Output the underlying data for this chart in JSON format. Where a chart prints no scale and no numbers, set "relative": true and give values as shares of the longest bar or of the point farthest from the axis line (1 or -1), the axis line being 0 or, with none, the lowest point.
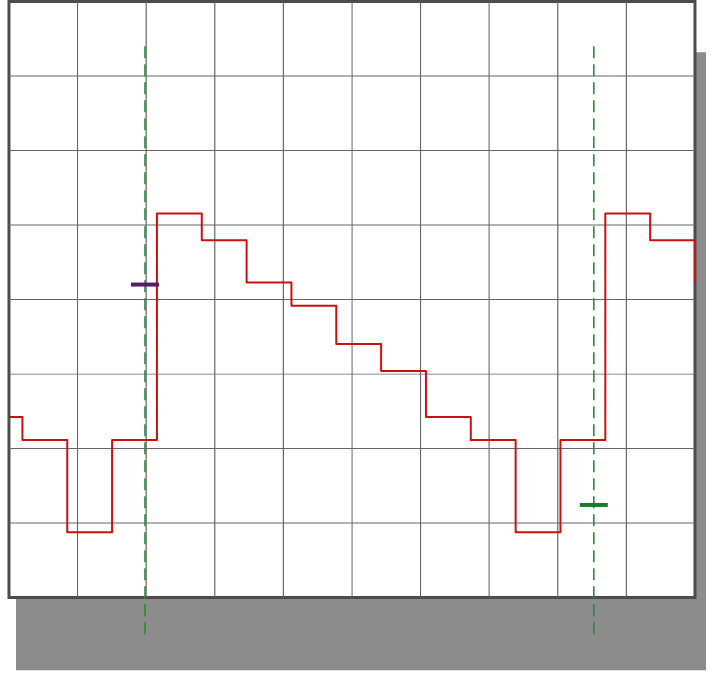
{
  "chart_data": {
    "type": "step",
    "relative": true,
    "tick_labels": false,
    "grid": true,
    "categories": [
      null,
      null,
      null,
      null,
      null,
      null,
      null,
      null,
      null,
      null,
      null,
      null,
      null,
      null,
      null,
      null,
      null
    ],
    "series": [
      {
        "color": "#cc1010",
        "values": [
          0.47,
          0.41,
          0.17,
          0.41,
          1,
          0.93,
          0.82,
          0.76,
          0.66,
          0.59,
          0.47,
          0.41,
          0.17,
          0.41,
          1,
          0.93,
          0.82
        ]
      }
    ]
  }
}
